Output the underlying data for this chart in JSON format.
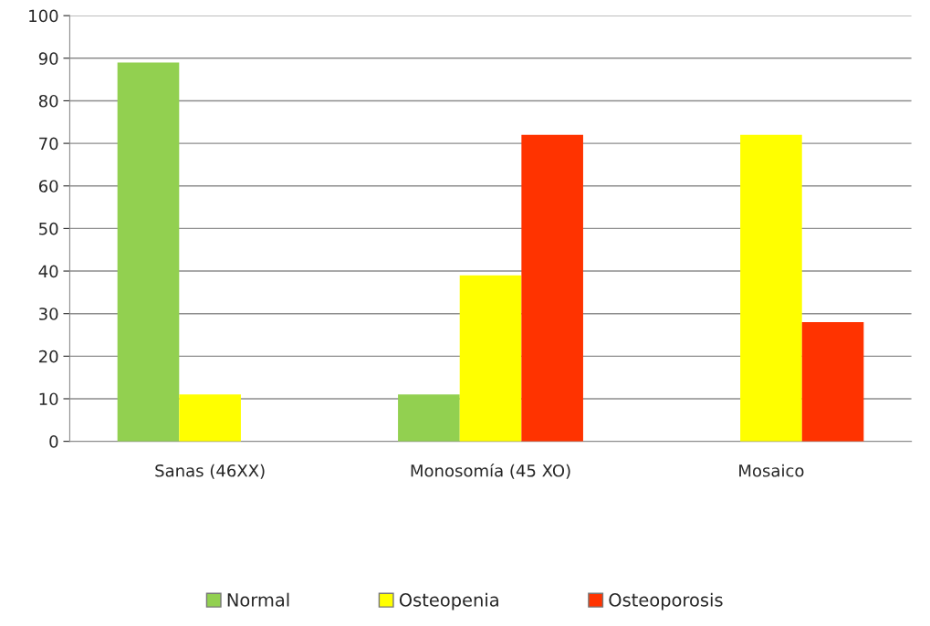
{
  "chart_data": {
    "type": "bar",
    "categories": [
      "Sanas (46XX)",
      "Monosomía (45 XO)",
      "Mosaico"
    ],
    "series": [
      {
        "name": "Normal",
        "color": "#92d050",
        "values": [
          89,
          11,
          0
        ]
      },
      {
        "name": "Osteopenia",
        "color": "#ffff00",
        "values": [
          11,
          39,
          72
        ]
      },
      {
        "name": "Osteoporosis",
        "color": "#ff3300",
        "values": [
          0,
          72,
          28
        ]
      }
    ],
    "ylim": [
      0,
      100
    ],
    "yticks": [
      0,
      10,
      20,
      30,
      40,
      50,
      60,
      70,
      80,
      90,
      100
    ],
    "grid": "y",
    "legend": "bottom"
  }
}
